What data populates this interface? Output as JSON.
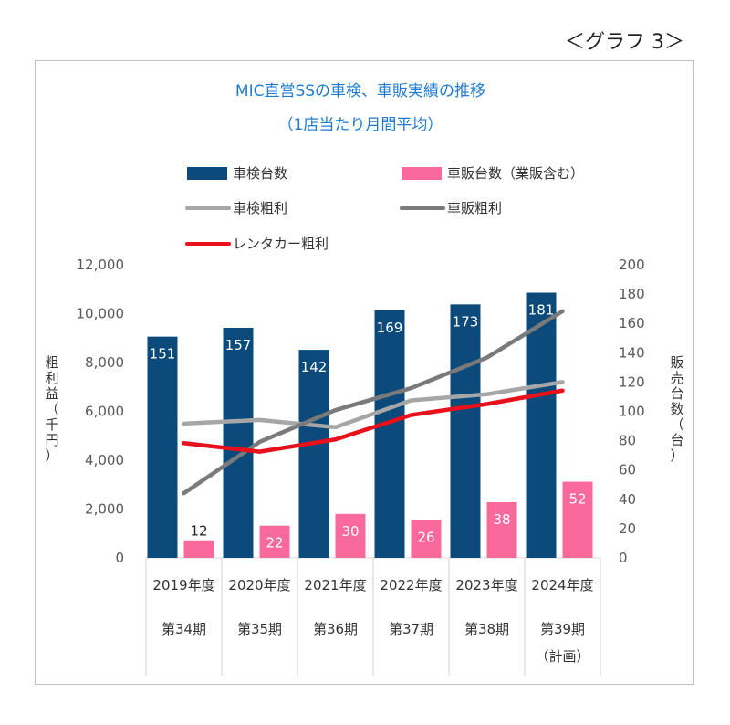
{
  "caption": "＜グラフ 3＞",
  "chart_data": {
    "type": "bar",
    "title": "MIC直営SSの車検、車販実績の推移",
    "subtitle": "（1店当たり月間平均）",
    "categories": [
      "2019年度",
      "2020年度",
      "2021年度",
      "2022年度",
      "2023年度",
      "2024年度"
    ],
    "category_sublabels": [
      [
        "第34期"
      ],
      [
        "第35期"
      ],
      [
        "第36期"
      ],
      [
        "第37期"
      ],
      [
        "第38期"
      ],
      [
        "第39期",
        "（計画）"
      ]
    ],
    "y_left": {
      "title": "粗利益（千円）",
      "lim": [
        0,
        12000
      ],
      "ticks": [
        "0",
        "2,000",
        "4,000",
        "6,000",
        "8,000",
        "10,000",
        "12,000"
      ],
      "tick_values": [
        0,
        2000,
        4000,
        6000,
        8000,
        10000,
        12000
      ]
    },
    "y_right": {
      "title": "販売台数（台）",
      "lim": [
        0,
        200
      ],
      "ticks": [
        "0",
        "20",
        "40",
        "60",
        "80",
        "100",
        "120",
        "140",
        "160",
        "180",
        "200"
      ],
      "tick_values": [
        0,
        20,
        40,
        60,
        80,
        100,
        120,
        140,
        160,
        180,
        200
      ]
    },
    "bar_series": [
      {
        "name": "車検台数",
        "axis": "right",
        "color": "#0b4a7a",
        "label_color": "#ffffff",
        "values": [
          151,
          157,
          142,
          169,
          173,
          181
        ]
      },
      {
        "name": "車販台数（業販含む）",
        "axis": "right",
        "color": "#f9699b",
        "label_color": "#ffffff",
        "values": [
          12,
          22,
          30,
          26,
          38,
          52
        ]
      }
    ],
    "line_series": [
      {
        "name": "車検粗利",
        "axis": "left",
        "color": "#a6a6a6",
        "values": [
          5500,
          5650,
          5350,
          6450,
          6700,
          7200
        ]
      },
      {
        "name": "車販粗利",
        "axis": "left",
        "color": "#7a7a7a",
        "values": [
          2650,
          4750,
          6050,
          6950,
          8200,
          10100
        ]
      },
      {
        "name": "レンタカー粗利",
        "axis": "left",
        "color": "#e8101a",
        "values": [
          4700,
          4350,
          4850,
          5850,
          6300,
          6850
        ]
      }
    ],
    "legend": [
      {
        "name": "車検台数",
        "kind": "bar",
        "color": "#0b4a7a"
      },
      {
        "name": "車販台数（業販含む）",
        "kind": "bar",
        "color": "#f9699b"
      },
      {
        "name": "車検粗利",
        "kind": "line",
        "color": "#a6a6a6"
      },
      {
        "name": "車販粗利",
        "kind": "line",
        "color": "#7a7a7a"
      },
      {
        "name": "レンタカー粗利",
        "kind": "line",
        "color": "#e8101a"
      }
    ],
    "legend_position": "top",
    "grid": false
  }
}
